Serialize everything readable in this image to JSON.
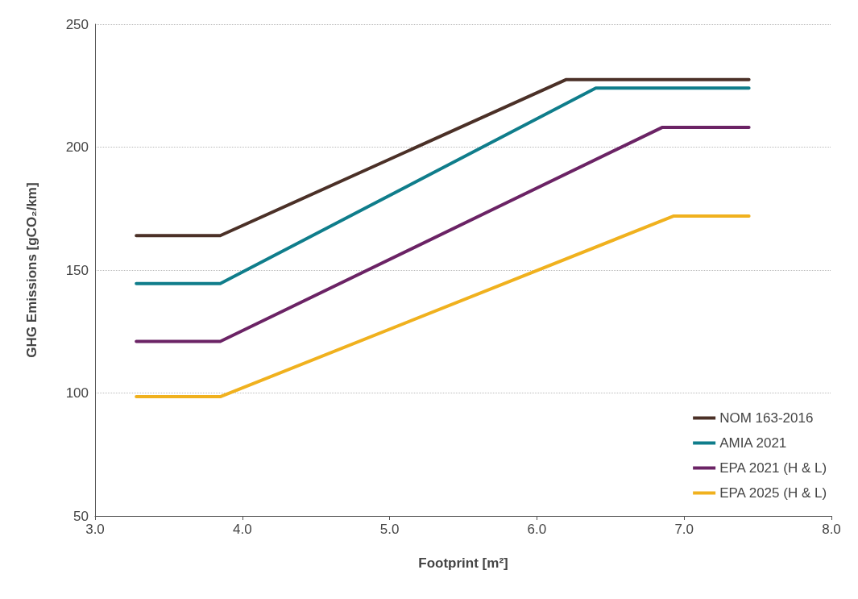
{
  "chart_data": {
    "type": "line",
    "xlabel": "Footprint [m²]",
    "ylabel": "GHG Emissions [gCO₂/km]",
    "xlim": [
      3.0,
      8.0
    ],
    "xticks": [
      {
        "value": 3,
        "label": "3.0"
      },
      {
        "value": 4,
        "label": "4.0"
      },
      {
        "value": 5,
        "label": "5.0"
      },
      {
        "value": 6,
        "label": "6.0"
      },
      {
        "value": 7,
        "label": "7.0"
      },
      {
        "value": 8,
        "label": "8.0"
      }
    ],
    "ylim": [
      50,
      250
    ],
    "yticks": [
      50,
      100,
      150,
      200,
      250
    ],
    "grid": "y",
    "legend": "bottom right",
    "marker": "none",
    "line_style": "solid",
    "series": [
      {
        "name": "NOM 163-2016",
        "color": "#4b3027",
        "x": [
          3.28,
          3.85,
          6.2,
          7.44
        ],
        "values": [
          164,
          164,
          227.5,
          227.5
        ]
      },
      {
        "name": "AMIA 2021",
        "color": "#0f7d8b",
        "x": [
          3.28,
          3.85,
          6.4,
          7.44
        ],
        "values": [
          144.5,
          144.5,
          224,
          224
        ]
      },
      {
        "name": "EPA 2021 (H & L)",
        "color": "#6b2365",
        "x": [
          3.28,
          3.85,
          6.85,
          7.44
        ],
        "values": [
          121,
          121,
          208,
          208
        ]
      },
      {
        "name": "EPA 2025 (H & L)",
        "color": "#f0b11e",
        "x": [
          3.28,
          3.85,
          6.93,
          7.44
        ],
        "values": [
          98.5,
          98.5,
          172,
          172
        ]
      }
    ]
  }
}
